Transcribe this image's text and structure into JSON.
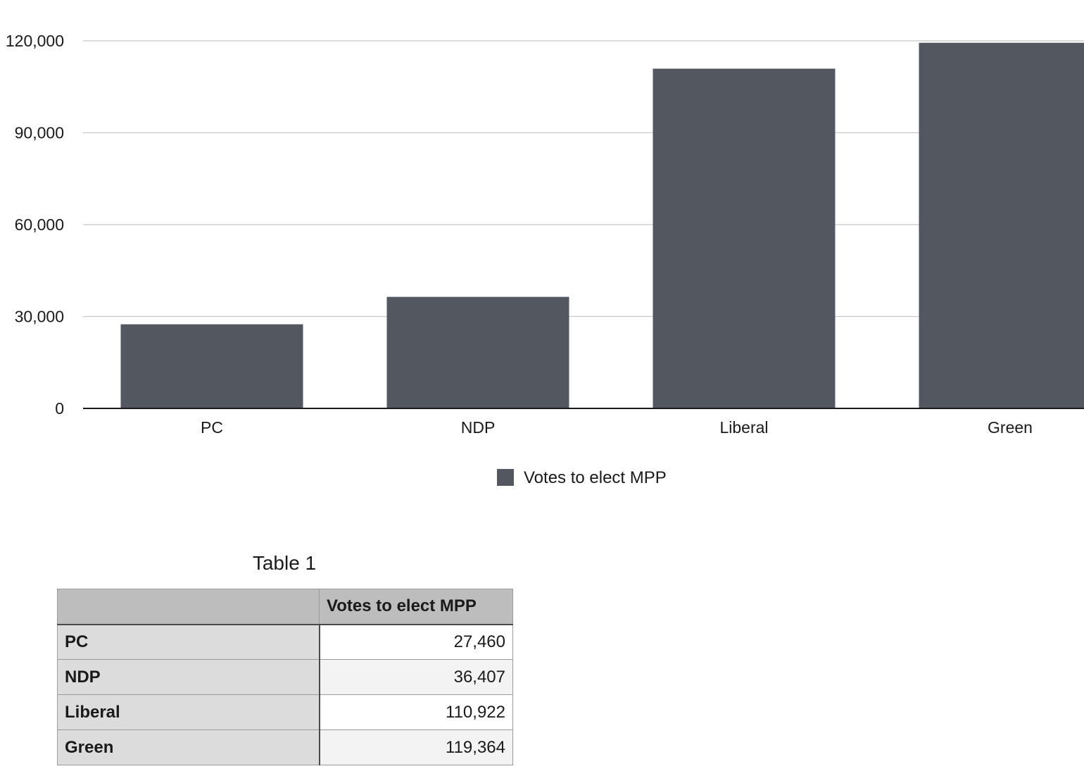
{
  "chart_data": {
    "type": "bar",
    "categories": [
      "PC",
      "NDP",
      "Liberal",
      "Green"
    ],
    "series": [
      {
        "name": "Votes to elect MPP",
        "values": [
          27460,
          36407,
          110922,
          119364
        ]
      }
    ],
    "yticks": [
      "0",
      "30,000",
      "60,000",
      "90,000",
      "120,000"
    ],
    "ytick_values": [
      0,
      30000,
      60000,
      90000,
      120000
    ],
    "ylim": [
      0,
      120000
    ],
    "grid": true,
    "legend_position": "bottom-center",
    "bar_color": "#53575f"
  },
  "table": {
    "title": "Table 1",
    "corner": "",
    "column_header": "Votes to elect MPP",
    "rows": [
      {
        "label": "PC",
        "value": "27,460"
      },
      {
        "label": "NDP",
        "value": "36,407"
      },
      {
        "label": "Liberal",
        "value": "110,922"
      },
      {
        "label": "Green",
        "value": "119,364"
      }
    ]
  }
}
